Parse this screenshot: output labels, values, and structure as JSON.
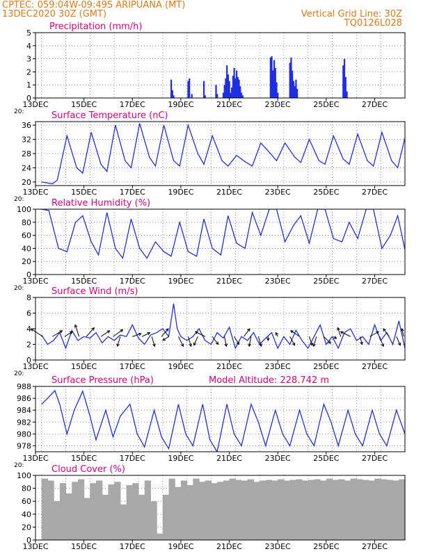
{
  "header": {
    "line1": "CPTEC:    059:04W-09:49S   ARIPUANA (MT)",
    "line2": "13DEC2020 30Z (GMT)",
    "grid_note": "Vertical Grid Line: 30Z",
    "code": "TQ0126L028"
  },
  "colors": {
    "header": "#e07a1a",
    "title": "#e0007a",
    "series": "#1f2ee0",
    "cloud": "#a8a8a8",
    "wind_vector": "#000000"
  },
  "date_ticks": [
    "13DEC",
    "15DEC",
    "17DEC",
    "19DEC",
    "21DEC",
    "23DEC",
    "25DEC",
    "27DEC"
  ],
  "axis_fragment": "20:",
  "chart_data": [
    {
      "id": "precip",
      "type": "bar",
      "title": "Precipitation (mm/h)",
      "unit": "mm/h",
      "ylim": [
        0,
        5
      ],
      "yticks": [
        0,
        1,
        2,
        3,
        4,
        5
      ],
      "grid": true,
      "x_days": [
        18.6,
        18.65,
        18.7,
        19.3,
        19.35,
        19.45,
        19.95,
        20.0,
        20.45,
        20.5,
        20.75,
        20.8,
        20.85,
        20.9,
        20.95,
        21.0,
        21.05,
        21.1,
        21.15,
        21.2,
        21.25,
        21.3,
        21.35,
        21.4,
        21.45,
        21.5,
        21.55,
        22.7,
        22.75,
        22.8,
        22.85,
        22.9,
        22.95,
        23.0,
        23.5,
        23.55,
        23.6,
        23.65,
        23.7,
        23.75,
        23.8,
        25.7,
        25.75,
        25.8,
        25.85
      ],
      "values": [
        1.4,
        0.6,
        0.2,
        1.3,
        1.5,
        0.3,
        1.3,
        0.2,
        1.0,
        0.3,
        0.4,
        1.0,
        1.5,
        2.5,
        1.8,
        1.3,
        0.4,
        0.8,
        1.7,
        2.3,
        1.5,
        2.1,
        1.6,
        1.4,
        0.9,
        0.4,
        0.2,
        3.1,
        3.2,
        2.1,
        2.9,
        2.3,
        1.2,
        0.4,
        2.7,
        3.1,
        2.1,
        1.3,
        0.9,
        1.4,
        0.7,
        2.5,
        3.0,
        1.6,
        0.5
      ]
    },
    {
      "id": "temp",
      "type": "line",
      "title": "Surface Temperature (nC)",
      "unit": "nC",
      "ylim": [
        19,
        37
      ],
      "yticks": [
        20,
        24,
        28,
        32,
        36
      ],
      "grid": true,
      "x_days": [
        13.25,
        13.7,
        13.9,
        14.3,
        14.7,
        14.95,
        15.3,
        15.7,
        15.95,
        16.3,
        16.7,
        16.95,
        17.3,
        17.7,
        17.95,
        18.3,
        18.7,
        18.95,
        19.3,
        19.7,
        19.95,
        20.3,
        20.7,
        20.95,
        21.3,
        21.7,
        21.95,
        22.3,
        22.7,
        22.95,
        23.3,
        23.7,
        23.95,
        24.3,
        24.7,
        24.95,
        25.3,
        25.7,
        25.95,
        26.3,
        26.7,
        26.95,
        27.3,
        27.7,
        27.95,
        28.25
      ],
      "values": [
        20,
        19.5,
        20.5,
        33,
        24,
        22.5,
        34,
        25,
        23,
        36,
        26,
        24,
        36.5,
        27,
        24.5,
        36,
        26,
        24.5,
        36,
        28,
        25,
        33,
        26,
        24.5,
        27.5,
        25.5,
        24.5,
        31,
        28,
        26,
        31,
        27,
        25.5,
        32,
        26,
        25,
        33,
        26.5,
        25,
        33.5,
        26,
        24.5,
        34,
        26,
        24,
        32.5
      ]
    },
    {
      "id": "rh",
      "type": "line",
      "title": "Relative Humidity (%)",
      "unit": "%",
      "ylim": [
        0,
        100
      ],
      "yticks": [
        0,
        20,
        40,
        60,
        80,
        100
      ],
      "grid": true,
      "x_days": [
        13.25,
        13.55,
        13.95,
        14.3,
        14.65,
        14.95,
        15.3,
        15.6,
        15.95,
        16.3,
        16.6,
        16.95,
        17.3,
        17.6,
        17.95,
        18.3,
        18.6,
        18.95,
        19.3,
        19.65,
        19.95,
        20.3,
        20.65,
        20.95,
        21.3,
        21.65,
        21.95,
        22.3,
        22.65,
        22.95,
        23.3,
        23.65,
        23.95,
        24.3,
        24.65,
        24.95,
        25.3,
        25.65,
        25.95,
        26.3,
        26.65,
        26.95,
        27.3,
        27.65,
        27.95,
        28.25
      ],
      "values": [
        100,
        98,
        40,
        35,
        80,
        90,
        50,
        30,
        95,
        40,
        25,
        85,
        40,
        25,
        50,
        35,
        28,
        80,
        35,
        28,
        85,
        40,
        30,
        90,
        48,
        40,
        95,
        60,
        100,
        100,
        50,
        75,
        90,
        48,
        100,
        100,
        55,
        50,
        80,
        55,
        100,
        100,
        40,
        60,
        90,
        38
      ]
    },
    {
      "id": "wind",
      "type": "line",
      "title": "Surface Wind (m/s)",
      "unit": "m/s",
      "ylim": [
        0,
        8
      ],
      "yticks": [
        0,
        2,
        4,
        6,
        8
      ],
      "grid": true,
      "x_days": [
        13.25,
        13.5,
        13.75,
        14.0,
        14.25,
        14.5,
        14.75,
        15.0,
        15.25,
        15.5,
        15.75,
        16.0,
        16.25,
        16.5,
        16.75,
        17.0,
        17.25,
        17.5,
        17.75,
        18.0,
        18.25,
        18.5,
        18.7,
        18.85,
        19.0,
        19.25,
        19.5,
        19.75,
        20.0,
        20.25,
        20.5,
        20.75,
        21.0,
        21.25,
        21.5,
        21.75,
        22.0,
        22.25,
        22.5,
        22.75,
        23.0,
        23.25,
        23.5,
        23.75,
        24.0,
        24.25,
        24.5,
        24.75,
        25.0,
        25.25,
        25.5,
        25.75,
        26.0,
        26.25,
        26.5,
        26.75,
        27.0,
        27.25,
        27.5,
        27.75,
        28.0,
        28.25
      ],
      "values": [
        3.2,
        2.0,
        2.5,
        3.5,
        1.5,
        3.8,
        2.5,
        3.0,
        2.8,
        3.5,
        2.2,
        3.0,
        2.5,
        3.2,
        3.0,
        4.5,
        2.8,
        2.0,
        3.2,
        3.5,
        4.0,
        3.0,
        7.2,
        4.0,
        3.0,
        2.5,
        3.0,
        4.0,
        2.5,
        2.0,
        3.5,
        2.8,
        4.2,
        1.5,
        3.0,
        2.5,
        3.5,
        2.0,
        2.8,
        3.5,
        1.5,
        3.0,
        2.0,
        3.8,
        2.5,
        1.5,
        3.0,
        4.5,
        2.0,
        3.0,
        1.5,
        3.5,
        4.0,
        2.5,
        3.0,
        2.0,
        4.5,
        2.5,
        3.5,
        2.0,
        5.0,
        1.5
      ],
      "vectors": [
        {
          "x": 13.3,
          "u": -1.2,
          "v": 0.8
        },
        {
          "x": 13.7,
          "u": 1.0,
          "v": 0.6
        },
        {
          "x": 14.2,
          "u": 0.8,
          "v": 0.5
        },
        {
          "x": 14.8,
          "u": -0.4,
          "v": 1.2
        },
        {
          "x": 15.1,
          "u": 0.8,
          "v": 0.9
        },
        {
          "x": 15.7,
          "u": 0.9,
          "v": 0.6
        },
        {
          "x": 16.2,
          "u": 1.0,
          "v": 0.7
        },
        {
          "x": 16.5,
          "u": -0.3,
          "v": -1.0
        },
        {
          "x": 17.0,
          "u": 0.9,
          "v": 0.3
        },
        {
          "x": 17.4,
          "u": 0.8,
          "v": 0.4
        },
        {
          "x": 17.8,
          "u": 0.3,
          "v": -1.0
        },
        {
          "x": 18.2,
          "u": 0.7,
          "v": 0.8
        },
        {
          "x": 18.5,
          "u": -0.6,
          "v": -0.4
        },
        {
          "x": 18.9,
          "u": 0.5,
          "v": -1.0
        },
        {
          "x": 19.3,
          "u": 0.3,
          "v": -1.0
        },
        {
          "x": 19.7,
          "u": -0.4,
          "v": -0.9
        },
        {
          "x": 20.0,
          "u": -1.0,
          "v": 0.5
        },
        {
          "x": 20.3,
          "u": 0.6,
          "v": -0.8
        },
        {
          "x": 20.8,
          "u": 0.2,
          "v": -1.0
        },
        {
          "x": 21.2,
          "u": 0.5,
          "v": -0.8
        },
        {
          "x": 21.6,
          "u": 0.6,
          "v": 0.8
        },
        {
          "x": 21.9,
          "u": -0.2,
          "v": -1.0
        },
        {
          "x": 22.2,
          "u": 0.3,
          "v": -1.0
        },
        {
          "x": 22.6,
          "u": 0.0,
          "v": -0.4
        },
        {
          "x": 23.0,
          "u": -0.2,
          "v": 0.4
        },
        {
          "x": 23.5,
          "u": 0.5,
          "v": -0.9
        },
        {
          "x": 23.9,
          "u": -0.9,
          "v": 0.6
        },
        {
          "x": 24.3,
          "u": 0.3,
          "v": -0.9
        },
        {
          "x": 24.6,
          "u": -0.3,
          "v": -1.0
        },
        {
          "x": 24.9,
          "u": 0.7,
          "v": -0.7
        },
        {
          "x": 25.3,
          "u": 0.3,
          "v": -0.2
        },
        {
          "x": 25.6,
          "u": -0.3,
          "v": 0.9
        },
        {
          "x": 26.0,
          "u": -1.0,
          "v": 0.5
        },
        {
          "x": 26.4,
          "u": 0.2,
          "v": -0.8
        },
        {
          "x": 26.8,
          "u": 0.9,
          "v": 0.5
        },
        {
          "x": 27.2,
          "u": 0.4,
          "v": -1.0
        },
        {
          "x": 27.6,
          "u": -0.6,
          "v": 0.8
        },
        {
          "x": 27.9,
          "u": 0.4,
          "v": -0.9
        },
        {
          "x": 28.2,
          "u": -0.2,
          "v": 0.8
        }
      ]
    },
    {
      "id": "pres",
      "type": "line",
      "title": "Surface Pressure (hPa)",
      "unit": "hPa",
      "annotation": "Model Altitude: 228.742 m",
      "ylim": [
        977,
        988
      ],
      "yticks": [
        978,
        980,
        982,
        984,
        986,
        988
      ],
      "grid": true,
      "x_days": [
        13.25,
        13.5,
        13.8,
        14.0,
        14.3,
        14.6,
        14.95,
        15.25,
        15.5,
        15.9,
        16.2,
        16.5,
        16.9,
        17.2,
        17.5,
        17.9,
        18.2,
        18.5,
        18.9,
        19.2,
        19.5,
        19.9,
        20.2,
        20.5,
        20.9,
        21.2,
        21.5,
        21.9,
        22.2,
        22.5,
        22.9,
        23.2,
        23.5,
        23.9,
        24.2,
        24.5,
        24.9,
        25.2,
        25.5,
        25.9,
        26.2,
        26.5,
        26.9,
        27.2,
        27.5,
        27.9,
        28.25
      ],
      "values": [
        985,
        986,
        987.3,
        985,
        980,
        984,
        987.2,
        983,
        979,
        984,
        979.5,
        983,
        985,
        980,
        977.8,
        984,
        979.5,
        977.5,
        985,
        980,
        978,
        985,
        979,
        977,
        985,
        980,
        978,
        985,
        982,
        978,
        984,
        980,
        978,
        984,
        980,
        978,
        985,
        982,
        978,
        984,
        980,
        978,
        984,
        980,
        978,
        984,
        980
      ]
    },
    {
      "id": "cloud",
      "type": "bar",
      "title": "Cloud Cover (%)",
      "unit": "%",
      "ylim": [
        0,
        100
      ],
      "yticks": [
        0,
        20,
        40,
        60,
        80,
        100
      ],
      "grid": true,
      "x_days": [
        13.25,
        13.5,
        13.75,
        14.0,
        14.25,
        14.5,
        14.75,
        15.0,
        15.25,
        15.5,
        15.75,
        16.0,
        16.25,
        16.5,
        16.75,
        17.0,
        17.25,
        17.5,
        17.75,
        18.0,
        18.25,
        18.5,
        18.75,
        19.0,
        19.25,
        19.5,
        19.75,
        20.0,
        20.25,
        20.5,
        20.75,
        21.0,
        21.25,
        21.5,
        21.75,
        22.0,
        22.25,
        22.5,
        22.75,
        23.0,
        23.25,
        23.5,
        23.75,
        24.0,
        24.25,
        24.5,
        24.75,
        25.0,
        25.25,
        25.5,
        25.75,
        26.0,
        26.25,
        26.5,
        26.75,
        27.0,
        27.25,
        27.5,
        27.75,
        28.0
      ],
      "values": [
        95,
        92,
        60,
        88,
        72,
        90,
        94,
        65,
        88,
        92,
        70,
        86,
        90,
        55,
        85,
        88,
        70,
        92,
        60,
        10,
        70,
        95,
        82,
        92,
        85,
        95,
        90,
        92,
        88,
        90,
        92,
        95,
        93,
        92,
        94,
        90,
        92,
        93,
        92,
        94,
        92,
        93,
        94,
        92,
        93,
        94,
        92,
        95,
        93,
        94,
        92,
        95,
        94,
        93,
        92,
        95,
        94,
        93,
        92,
        94
      ]
    }
  ]
}
